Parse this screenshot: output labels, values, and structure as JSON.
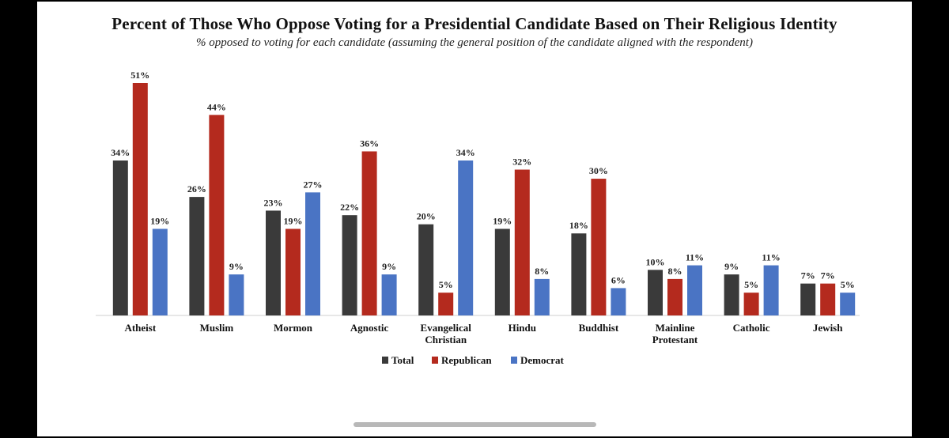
{
  "chart_data": {
    "type": "bar",
    "title": "Percent of Those Who Oppose Voting for a Presidential Candidate Based on Their Religious Identity",
    "subtitle": "% opposed to voting for each candidate (assuming the general position of the candidate aligned with the respondent)",
    "xlabel": "",
    "ylabel": "",
    "ylim": [
      0,
      55
    ],
    "grid": false,
    "legend_position": "bottom",
    "value_suffix": "%",
    "categories": [
      [
        "Atheist"
      ],
      [
        "Muslim"
      ],
      [
        "Mormon"
      ],
      [
        "Agnostic"
      ],
      [
        "Evangelical",
        "Christian"
      ],
      [
        "Hindu"
      ],
      [
        "Buddhist"
      ],
      [
        "Mainline",
        "Protestant"
      ],
      [
        "Catholic"
      ],
      [
        "Jewish"
      ]
    ],
    "series": [
      {
        "name": "Total",
        "color": "#3a3a3a",
        "values": [
          34,
          26,
          23,
          22,
          20,
          19,
          18,
          10,
          9,
          7
        ]
      },
      {
        "name": "Republican",
        "color": "#b42a1e",
        "values": [
          51,
          44,
          19,
          36,
          5,
          32,
          30,
          8,
          5,
          7
        ]
      },
      {
        "name": "Democrat",
        "color": "#4a74c4",
        "values": [
          19,
          9,
          27,
          9,
          34,
          8,
          6,
          11,
          11,
          5
        ]
      }
    ]
  }
}
